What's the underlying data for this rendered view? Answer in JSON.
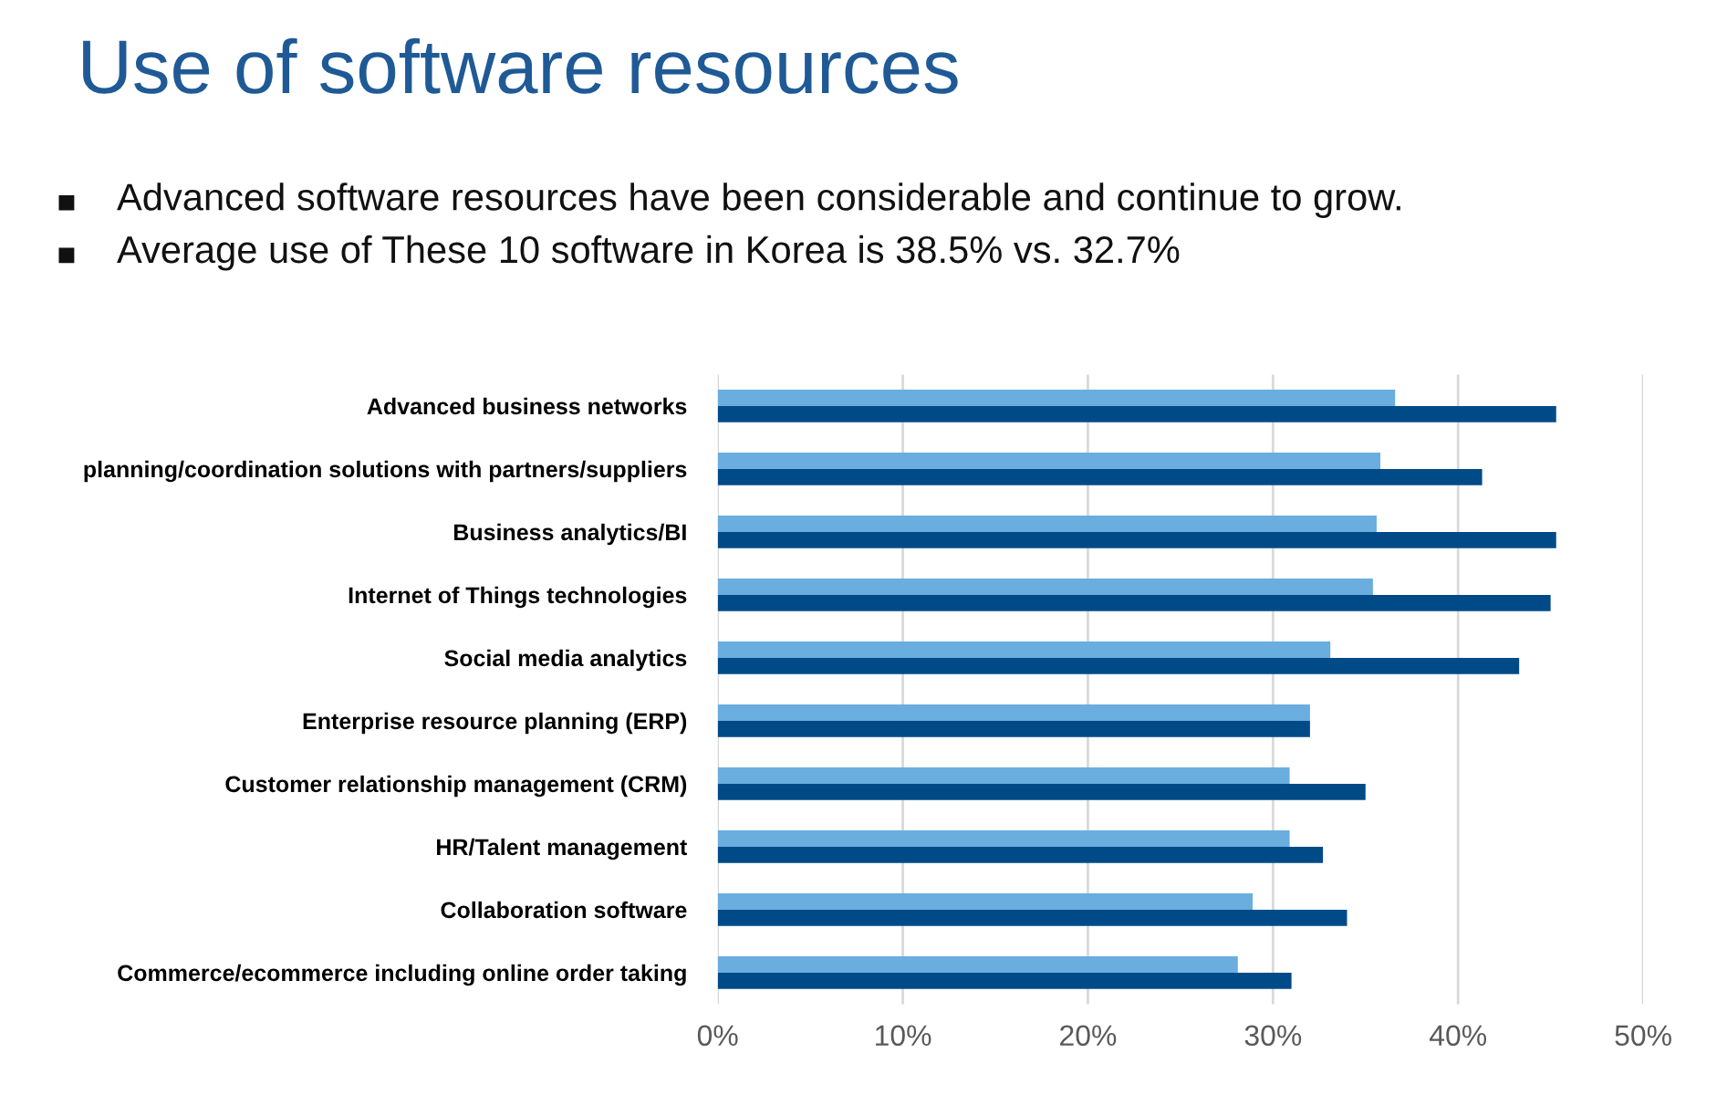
{
  "chart_data": {
    "type": "bar",
    "orientation": "horizontal",
    "title": "Use of software resources",
    "annotations": [
      "Advanced software resources have been considerable and continue to grow.",
      "Average use of These 10 software in Korea is 38.5% vs. 32.7%"
    ],
    "categories": [
      "Advanced business networks",
      "planning/coordination solutions with partners/suppliers",
      "Business analytics/BI",
      "Internet of Things technologies",
      "Social media analytics",
      "Enterprise resource planning (ERP)",
      "Customer relationship management (CRM)",
      "HR/Talent management",
      "Collaboration software",
      "Commerce/ecommerce including online order taking"
    ],
    "series": [
      {
        "color": "#6aaddf",
        "values": [
          36.6,
          35.8,
          35.6,
          35.4,
          33.1,
          32.0,
          30.9,
          30.9,
          28.9,
          28.1
        ]
      },
      {
        "color": "#004a87",
        "values": [
          45.3,
          41.3,
          45.3,
          45.0,
          43.3,
          32.0,
          35.0,
          32.7,
          34.0,
          31.0
        ]
      }
    ],
    "xlim": [
      0,
      50
    ],
    "xticks": [
      {
        "value": 0,
        "label": "0%"
      },
      {
        "value": 10,
        "label": "10%"
      },
      {
        "value": 20,
        "label": "20%"
      },
      {
        "value": 30,
        "label": "30%"
      },
      {
        "value": 40,
        "label": "40%"
      },
      {
        "value": 50,
        "label": "50%"
      }
    ],
    "grid": "x",
    "legend": false
  }
}
